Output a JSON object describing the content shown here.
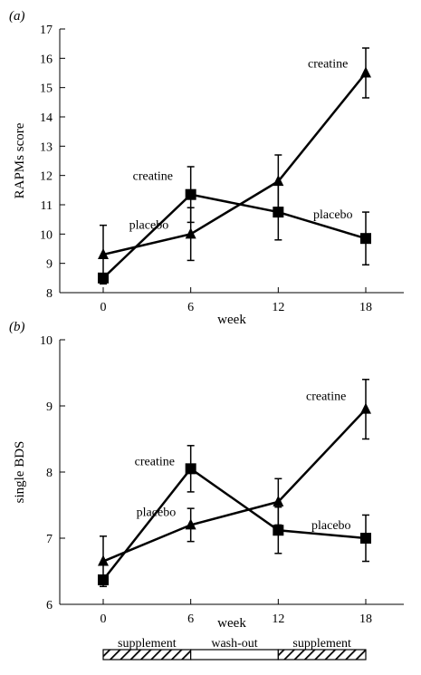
{
  "chart_data": [
    {
      "type": "line",
      "panel_label": "(a)",
      "xlabel": "week",
      "ylabel": "RAPMs score",
      "x": [
        0,
        6,
        12,
        18
      ],
      "xticks": [
        0,
        6,
        12,
        18
      ],
      "ylim": [
        8,
        17
      ],
      "yticks": [
        8,
        9,
        10,
        11,
        12,
        13,
        14,
        15,
        16,
        17
      ],
      "grid": false,
      "series": [
        {
          "name": "creatine",
          "marker": "triangle",
          "values": [
            9.3,
            10.0,
            11.8,
            15.5
          ],
          "errors": [
            1.0,
            0.9,
            0.9,
            0.85
          ]
        },
        {
          "name": "placebo",
          "marker": "square",
          "values": [
            8.5,
            11.35,
            10.75,
            9.85
          ],
          "errors": [
            0.0,
            0.95,
            0.95,
            0.9
          ]
        }
      ],
      "annotations": [
        {
          "text": "creatine",
          "x": 18,
          "y": 15.5
        },
        {
          "text": "creatine",
          "x": 6,
          "y": 11.35
        },
        {
          "text": "placebo",
          "x": 6,
          "y": 10.0
        },
        {
          "text": "placebo",
          "x": 18,
          "y": 9.85
        }
      ]
    },
    {
      "type": "line",
      "panel_label": "(b)",
      "xlabel": "week",
      "ylabel": "single BDS",
      "x": [
        0,
        6,
        12,
        18
      ],
      "xticks": [
        0,
        6,
        12,
        18
      ],
      "ylim": [
        6,
        10
      ],
      "yticks": [
        6,
        7,
        8,
        9,
        10
      ],
      "grid": false,
      "series": [
        {
          "name": "creatine",
          "marker": "triangle",
          "values": [
            6.65,
            7.2,
            7.55,
            8.95
          ],
          "errors": [
            0.38,
            0.25,
            0.35,
            0.45
          ]
        },
        {
          "name": "placebo",
          "marker": "square",
          "values": [
            6.37,
            8.05,
            7.12,
            7.0
          ],
          "errors": [
            0.0,
            0.35,
            0.35,
            0.35
          ]
        }
      ],
      "annotations": [
        {
          "text": "creatine",
          "x": 18,
          "y": 8.95
        },
        {
          "text": "creatine",
          "x": 6,
          "y": 8.05
        },
        {
          "text": "placebo",
          "x": 6,
          "y": 7.2
        },
        {
          "text": "placebo",
          "x": 18,
          "y": 7.0
        }
      ]
    }
  ],
  "timeline": [
    {
      "label": "supplement",
      "hatched": true
    },
    {
      "label": "wash-out",
      "hatched": false
    },
    {
      "label": "supplement",
      "hatched": true
    }
  ]
}
